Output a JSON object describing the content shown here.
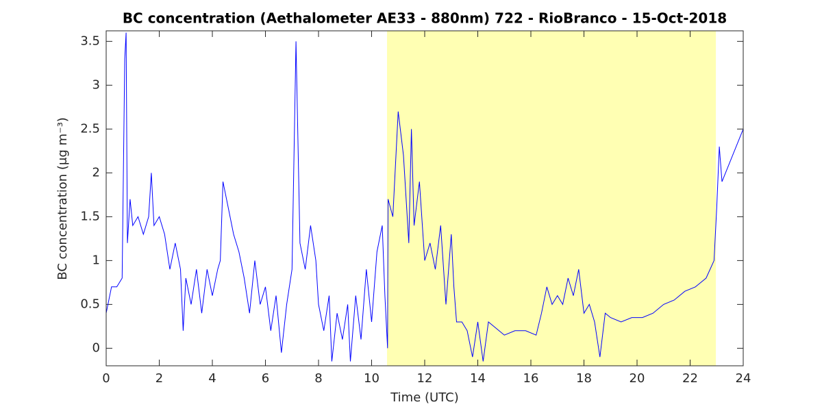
{
  "chart_data": {
    "type": "line",
    "title": "BC concentration (Aethalometer AE33 - 880nm) 722 - RioBranco - 15-Oct-2018",
    "xlabel": "Time (UTC)",
    "ylabel": "BC concentration (μg m⁻³)",
    "xlim": [
      0,
      24
    ],
    "xticks": [
      0,
      2,
      4,
      6,
      8,
      10,
      12,
      14,
      16,
      18,
      20,
      22,
      24
    ],
    "ylim": [
      -0.2,
      3.62
    ],
    "yticks": [
      0,
      0.5,
      1,
      1.5,
      2,
      2.5,
      3,
      3.5
    ],
    "highlight_x": [
      10.58,
      22.97
    ],
    "highlight_color": "#ffffb3",
    "x": [
      0,
      0.2,
      0.4,
      0.6,
      0.7,
      0.75,
      0.8,
      0.9,
      1.0,
      1.2,
      1.4,
      1.6,
      1.7,
      1.8,
      2.0,
      2.2,
      2.4,
      2.6,
      2.8,
      2.9,
      3.0,
      3.2,
      3.4,
      3.6,
      3.8,
      4.0,
      4.2,
      4.3,
      4.4,
      4.6,
      4.8,
      5.0,
      5.2,
      5.4,
      5.6,
      5.8,
      6.0,
      6.2,
      6.4,
      6.6,
      6.8,
      7.0,
      7.15,
      7.3,
      7.5,
      7.7,
      7.9,
      8.0,
      8.2,
      8.4,
      8.5,
      8.7,
      8.9,
      9.1,
      9.2,
      9.4,
      9.6,
      9.8,
      10.0,
      10.2,
      10.4,
      10.5,
      10.6,
      10.62,
      10.8,
      11.0,
      11.2,
      11.4,
      11.5,
      11.6,
      11.8,
      12.0,
      12.2,
      12.4,
      12.6,
      12.8,
      13.0,
      13.1,
      13.2,
      13.4,
      13.6,
      13.8,
      14.0,
      14.2,
      14.4,
      14.6,
      14.8,
      15.0,
      15.4,
      15.8,
      16.2,
      16.4,
      16.6,
      16.8,
      17.0,
      17.2,
      17.4,
      17.6,
      17.8,
      18.0,
      18.2,
      18.4,
      18.6,
      18.8,
      19.0,
      19.4,
      19.8,
      20.2,
      20.6,
      21.0,
      21.4,
      21.8,
      22.2,
      22.6,
      22.9,
      23.0,
      23.1,
      23.2,
      24.0
    ],
    "series": [
      {
        "name": "BC",
        "color": "#0000ff",
        "values": [
          0.4,
          0.7,
          0.7,
          0.8,
          3.3,
          3.6,
          1.2,
          1.7,
          1.4,
          1.5,
          1.3,
          1.5,
          2.0,
          1.4,
          1.5,
          1.3,
          0.9,
          1.2,
          0.9,
          0.2,
          0.8,
          0.5,
          0.9,
          0.4,
          0.9,
          0.6,
          0.9,
          1.0,
          1.9,
          1.6,
          1.3,
          1.1,
          0.8,
          0.4,
          1.0,
          0.5,
          0.7,
          0.2,
          0.6,
          -0.05,
          0.5,
          0.9,
          3.5,
          1.2,
          0.9,
          1.4,
          1.0,
          0.5,
          0.2,
          0.6,
          -0.15,
          0.4,
          0.1,
          0.5,
          -0.15,
          0.6,
          0.1,
          0.9,
          0.3,
          1.1,
          1.4,
          0.6,
          0.0,
          1.7,
          1.5,
          2.7,
          2.2,
          1.2,
          2.5,
          1.4,
          1.9,
          1.0,
          1.2,
          0.9,
          1.4,
          0.5,
          1.3,
          0.7,
          0.3,
          0.3,
          0.2,
          -0.1,
          0.3,
          -0.15,
          0.3,
          0.25,
          0.2,
          0.15,
          0.2,
          0.2,
          0.15,
          0.4,
          0.7,
          0.5,
          0.6,
          0.5,
          0.8,
          0.6,
          0.9,
          0.4,
          0.5,
          0.3,
          -0.1,
          0.4,
          0.35,
          0.3,
          0.35,
          0.35,
          0.4,
          0.5,
          0.55,
          0.65,
          0.7,
          0.8,
          1.0,
          1.6,
          2.3,
          1.9,
          2.5
        ]
      }
    ]
  }
}
